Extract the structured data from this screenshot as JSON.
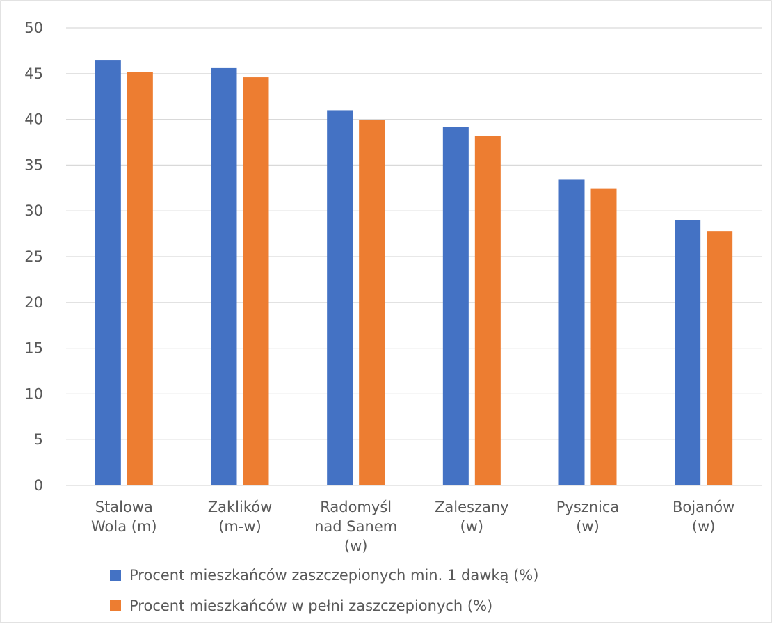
{
  "chart_data": {
    "type": "bar",
    "title": "",
    "xlabel": "",
    "ylabel": "",
    "categories": [
      [
        "Stalowa",
        "Wola (m)"
      ],
      [
        "Zaklików",
        "(m-w)"
      ],
      [
        "Radomyśl",
        "nad Sanem",
        "(w)"
      ],
      [
        "Zaleszany",
        "(w)"
      ],
      [
        "Pysznica",
        "(w)"
      ],
      [
        "Bojanów",
        "(w)"
      ]
    ],
    "series": [
      {
        "name": "Procent mieszkańców zaszczepionych min. 1 dawką (%)",
        "color": "#4472C4",
        "values": [
          46.5,
          45.6,
          41.0,
          39.2,
          33.4,
          29.0
        ]
      },
      {
        "name": "Procent mieszkańców w pełni zaszczepionych (%)",
        "color": "#ED7D31",
        "values": [
          45.2,
          44.6,
          39.9,
          38.2,
          32.4,
          27.8
        ]
      }
    ],
    "ylim": [
      0,
      50
    ],
    "yticks": [
      0,
      5,
      10,
      15,
      20,
      25,
      30,
      35,
      40,
      45,
      50
    ],
    "grid": true,
    "legend": "bottom"
  }
}
